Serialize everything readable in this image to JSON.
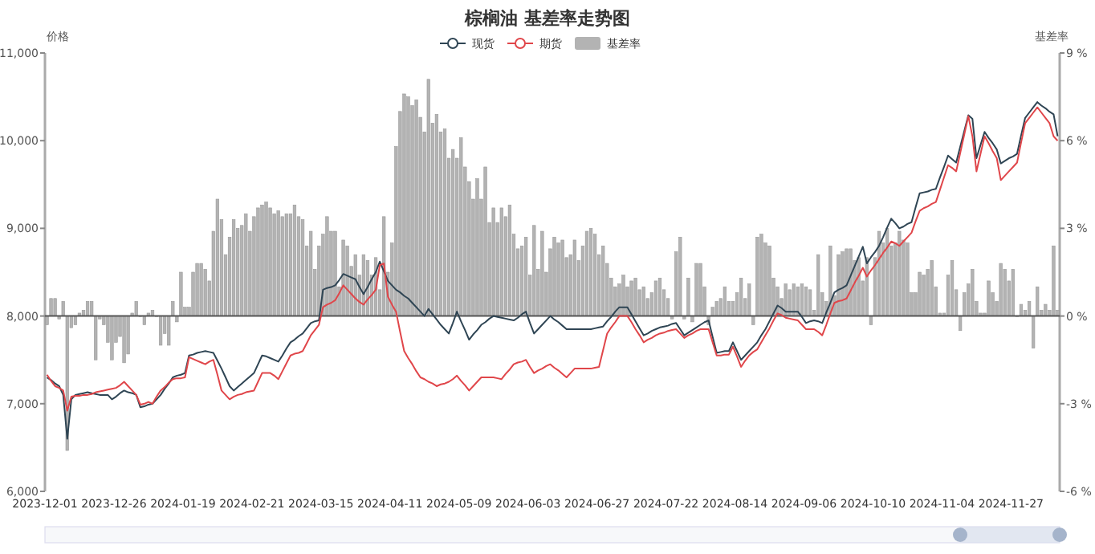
{
  "chart_data": {
    "type": "line",
    "title": "棕榈油 基差率走势图",
    "ylabel": "价格",
    "y2label": "基差率",
    "legend": "top",
    "categories": [
      "2023-12-01",
      null,
      null,
      null,
      null,
      null,
      null,
      null,
      null,
      null,
      null,
      null,
      null,
      null,
      null,
      null,
      null,
      "2023-12-26",
      null,
      null,
      null,
      null,
      null,
      null,
      null,
      null,
      null,
      null,
      null,
      null,
      null,
      null,
      null,
      null,
      "2024-01-19",
      null,
      null,
      null,
      null,
      null,
      null,
      null,
      null,
      null,
      null,
      null,
      null,
      null,
      null,
      null,
      null,
      "2024-02-21",
      null,
      null,
      null,
      null,
      null,
      null,
      null,
      null,
      null,
      null,
      null,
      null,
      null,
      null,
      null,
      null,
      "2024-03-15",
      null,
      null,
      null,
      null,
      null,
      null,
      null,
      null,
      null,
      null,
      null,
      null,
      null,
      null,
      null,
      null,
      "2024-04-11",
      null,
      null,
      null,
      null,
      null,
      null,
      null,
      null,
      null,
      null,
      null,
      null,
      null,
      null,
      null,
      null,
      "2024-05-09",
      null,
      null,
      null,
      null,
      null,
      null,
      null,
      null,
      null,
      null,
      null,
      null,
      null,
      null,
      null,
      null,
      "2024-06-03",
      null,
      null,
      null,
      null,
      null,
      null,
      null,
      null,
      null,
      null,
      null,
      null,
      null,
      null,
      null,
      null,
      "2024-06-27",
      null,
      null,
      null,
      null,
      null,
      null,
      null,
      null,
      null,
      null,
      null,
      null,
      null,
      null,
      null,
      null,
      "2024-07-22",
      null,
      null,
      null,
      null,
      null,
      null,
      null,
      null,
      null,
      null,
      null,
      null,
      null,
      null,
      null,
      null,
      "2024-08-14",
      null,
      null,
      null,
      null,
      null,
      null,
      null,
      null,
      null,
      null,
      null,
      null,
      null,
      null,
      null,
      null,
      "2024-09-06",
      null,
      null,
      null,
      null,
      null,
      null,
      null,
      null,
      null,
      null,
      null,
      null,
      null,
      null,
      null,
      null,
      "2024-10-10",
      null,
      null,
      null,
      null,
      null,
      null,
      null,
      null,
      null,
      null,
      null,
      null,
      null,
      null,
      null,
      null,
      "2024-11-04",
      null,
      null,
      null,
      null,
      null,
      null,
      null,
      null,
      null,
      null,
      null,
      null,
      null,
      null,
      null,
      null,
      "2024-11-27",
      null,
      null,
      null,
      null,
      null,
      null,
      null,
      null,
      null,
      null,
      null
    ],
    "ylim": [
      6000,
      11000
    ],
    "yticks": [
      {
        "value": 6000,
        "label": "6,000"
      },
      {
        "value": 7000,
        "label": "7,000"
      },
      {
        "value": 8000,
        "label": "8,000"
      },
      {
        "value": 9000,
        "label": "9,000"
      },
      {
        "value": 10000,
        "label": "10,000"
      },
      {
        "value": 11000,
        "label": "11,000"
      }
    ],
    "y2lim": [
      -6,
      9
    ],
    "y2ticks": [
      {
        "value": -6,
        "label": "-6 %"
      },
      {
        "value": -3,
        "label": "-3 %"
      },
      {
        "value": 0,
        "label": "0 %"
      },
      {
        "value": 3,
        "label": "3 %"
      },
      {
        "value": 6,
        "label": "6 %"
      },
      {
        "value": 9,
        "label": "9 %"
      }
    ],
    "series": [
      {
        "name": "现货",
        "color": "#2f4554",
        "values": [
          7300,
          7270,
          7230,
          7200,
          7100,
          6600,
          7050,
          7100,
          7110,
          7120,
          7130,
          7120,
          7110,
          7100,
          7100,
          7100,
          7050,
          7080,
          7120,
          7150,
          7130,
          7120,
          7100,
          6960,
          6970,
          6990,
          7000,
          7050,
          7100,
          7170,
          7230,
          7300,
          7320,
          7330,
          7350,
          7550,
          7560,
          7580,
          7590,
          7600,
          7590,
          7580,
          7490,
          7400,
          7300,
          7200,
          7150,
          7190,
          7230,
          7270,
          7310,
          7350,
          7450,
          7550,
          7540,
          7520,
          7500,
          7480,
          7550,
          7630,
          7700,
          7730,
          7770,
          7800,
          7860,
          7920,
          7940,
          7950,
          8300,
          8320,
          8330,
          8350,
          8410,
          8480,
          8460,
          8440,
          8420,
          8330,
          8250,
          8330,
          8420,
          8500,
          8620,
          8510,
          8400,
          8350,
          8300,
          8270,
          8230,
          8200,
          8150,
          8100,
          8050,
          8000,
          8080,
          8020,
          7960,
          7900,
          7850,
          7800,
          7920,
          8050,
          7940,
          7840,
          7730,
          7790,
          7840,
          7900,
          7930,
          7970,
          8000,
          7990,
          7980,
          7970,
          7960,
          7950,
          7980,
          8020,
          8050,
          7920,
          7800,
          7850,
          7900,
          7950,
          8000,
          7960,
          7930,
          7890,
          7850,
          7850,
          7850,
          7850,
          7850,
          7850,
          7850,
          7860,
          7870,
          7880,
          7940,
          7990,
          8050,
          8100,
          8100,
          8100,
          8020,
          7940,
          7860,
          7780,
          7800,
          7830,
          7850,
          7870,
          7880,
          7890,
          7910,
          7920,
          7850,
          7780,
          7810,
          7840,
          7870,
          7900,
          7930,
          7950,
          7760,
          7580,
          7590,
          7600,
          7600,
          7700,
          7600,
          7500,
          7550,
          7600,
          7650,
          7700,
          7780,
          7850,
          7940,
          8030,
          8120,
          8090,
          8050,
          8050,
          8050,
          8050,
          7990,
          7920,
          7940,
          7950,
          7940,
          7920,
          8040,
          8150,
          8270,
          8300,
          8320,
          8350,
          8460,
          8570,
          8680,
          8790,
          8600,
          8670,
          8730,
          8800,
          8900,
          9010,
          9110,
          9060,
          9000,
          9020,
          9050,
          9070,
          9240,
          9400,
          9410,
          9420,
          9440,
          9450,
          9580,
          9700,
          9830,
          9790,
          9750,
          9930,
          10110,
          10290,
          10250,
          9800,
          9950,
          10100,
          10030,
          9970,
          9900,
          9740,
          9770,
          9800,
          9820,
          9850,
          10060,
          10260,
          10320,
          10380,
          10440,
          10400,
          10370,
          10330,
          10300,
          10050
        ]
      },
      {
        "name": "期货",
        "color": "#e0464a",
        "values": [
          7330,
          7260,
          7200,
          7180,
          7150,
          6920,
          7080,
          7090,
          7090,
          7100,
          7100,
          7110,
          7130,
          7140,
          7150,
          7160,
          7170,
          7180,
          7210,
          7250,
          7200,
          7150,
          7100,
          6990,
          7000,
          7020,
          7000,
          7080,
          7150,
          7190,
          7240,
          7280,
          7290,
          7290,
          7300,
          7530,
          7510,
          7490,
          7470,
          7450,
          7480,
          7500,
          7330,
          7150,
          7100,
          7050,
          7080,
          7100,
          7110,
          7130,
          7140,
          7150,
          7250,
          7350,
          7350,
          7350,
          7320,
          7280,
          7370,
          7460,
          7550,
          7570,
          7580,
          7600,
          7690,
          7780,
          7840,
          7900,
          8100,
          8130,
          8150,
          8180,
          8260,
          8350,
          8300,
          8250,
          8200,
          8160,
          8130,
          8190,
          8240,
          8300,
          8580,
          8600,
          8220,
          8130,
          8050,
          7820,
          7600,
          7520,
          7450,
          7370,
          7300,
          7280,
          7250,
          7230,
          7200,
          7220,
          7230,
          7250,
          7280,
          7320,
          7260,
          7210,
          7150,
          7200,
          7250,
          7300,
          7300,
          7300,
          7300,
          7290,
          7280,
          7340,
          7390,
          7450,
          7470,
          7480,
          7500,
          7420,
          7350,
          7380,
          7400,
          7430,
          7450,
          7410,
          7380,
          7340,
          7300,
          7350,
          7400,
          7400,
          7400,
          7400,
          7400,
          7410,
          7420,
          7610,
          7800,
          7870,
          7930,
          8000,
          8000,
          8000,
          7930,
          7850,
          7780,
          7700,
          7730,
          7750,
          7780,
          7800,
          7810,
          7830,
          7840,
          7850,
          7800,
          7750,
          7780,
          7800,
          7830,
          7850,
          7850,
          7850,
          7700,
          7550,
          7550,
          7560,
          7560,
          7650,
          7540,
          7420,
          7490,
          7550,
          7590,
          7620,
          7700,
          7780,
          7860,
          7950,
          8030,
          8010,
          7980,
          7970,
          7960,
          7950,
          7900,
          7850,
          7850,
          7850,
          7820,
          7780,
          7900,
          8030,
          8150,
          8170,
          8180,
          8200,
          8290,
          8380,
          8460,
          8550,
          8450,
          8520,
          8580,
          8650,
          8720,
          8780,
          8850,
          8830,
          8800,
          8850,
          8900,
          8950,
          9080,
          9200,
          9230,
          9250,
          9280,
          9300,
          9440,
          9580,
          9720,
          9690,
          9650,
          9860,
          10070,
          10280,
          10050,
          9650,
          9850,
          10050,
          9970,
          9880,
          9800,
          9550,
          9600,
          9650,
          9700,
          9750,
          9980,
          10200,
          10260,
          10320,
          10380,
          10320,
          10260,
          10200,
          10050,
          10000
        ]
      },
      {
        "name": "基差率",
        "type": "bar",
        "axis": "y2",
        "color": "#b3b3b3",
        "values": [
          -0.3,
          0.6,
          0.6,
          -0.1,
          0.5,
          -4.6,
          -0.4,
          -0.3,
          0.1,
          0.2,
          0.5,
          0.5,
          -1.5,
          -0.1,
          -0.3,
          -0.9,
          -1.5,
          -0.9,
          -0.7,
          -1.6,
          -1.3,
          0.1,
          0.5,
          0.0,
          -0.3,
          0.1,
          0.2,
          0.0,
          -1.0,
          -0.6,
          -1.0,
          0.5,
          -0.2,
          1.5,
          0.3,
          0.3,
          1.5,
          1.8,
          1.8,
          1.6,
          1.2,
          2.9,
          4.0,
          3.3,
          2.1,
          2.7,
          3.3,
          3.0,
          3.1,
          3.5,
          2.9,
          3.4,
          3.7,
          3.8,
          3.9,
          3.7,
          3.5,
          3.6,
          3.4,
          3.5,
          3.5,
          3.8,
          3.4,
          3.3,
          2.4,
          2.9,
          1.6,
          2.4,
          2.8,
          3.4,
          2.9,
          2.9,
          1.0,
          2.6,
          2.4,
          1.7,
          2.1,
          1.4,
          2.1,
          1.9,
          1.4,
          2.0,
          0.9,
          3.4,
          1.5,
          2.5,
          5.8,
          7.0,
          7.6,
          7.5,
          7.2,
          7.4,
          6.8,
          6.3,
          8.1,
          6.6,
          6.9,
          6.3,
          6.4,
          5.4,
          5.7,
          5.4,
          6.1,
          5.1,
          4.6,
          4.0,
          4.7,
          4.0,
          5.1,
          3.2,
          3.7,
          3.2,
          3.7,
          3.4,
          3.8,
          2.8,
          2.3,
          2.4,
          2.7,
          1.4,
          3.1,
          1.6,
          2.9,
          1.5,
          2.3,
          2.7,
          2.5,
          2.6,
          2.0,
          2.1,
          2.6,
          1.9,
          2.4,
          2.9,
          3.0,
          2.8,
          2.1,
          2.4,
          1.8,
          1.3,
          1.0,
          1.1,
          1.4,
          1.0,
          1.2,
          1.3,
          0.9,
          1.0,
          0.6,
          0.8,
          1.2,
          1.3,
          0.9,
          0.6,
          -0.1,
          2.2,
          2.7,
          -0.1,
          1.3,
          -0.2,
          1.8,
          1.8,
          1.0,
          -0.3,
          0.3,
          0.5,
          0.6,
          1.0,
          0.5,
          0.5,
          0.8,
          1.3,
          0.6,
          1.1,
          -0.3,
          2.7,
          2.8,
          2.5,
          2.4,
          1.3,
          1.0,
          0.6,
          1.1,
          0.9,
          1.1,
          1.0,
          1.1,
          1.0,
          0.9,
          0.2,
          2.1,
          0.8,
          0.5,
          2.4,
          0.7,
          2.1,
          2.2,
          2.3,
          2.3,
          1.9,
          2.0,
          1.2,
          2.0,
          -0.3,
          2.0,
          2.9,
          2.5,
          3.0,
          2.4,
          2.5,
          2.9,
          2.6,
          2.5,
          0.8,
          0.8,
          1.5,
          1.4,
          1.6,
          1.9,
          1.0,
          0.1,
          0.1,
          1.4,
          1.9,
          0.9,
          -0.5,
          0.8,
          1.1,
          1.6,
          0.5,
          0.1,
          0.1,
          1.2,
          0.8,
          0.5,
          1.8,
          1.6,
          1.2,
          1.6,
          0.0,
          0.4,
          0.2,
          0.5,
          -1.1,
          1.0,
          0.2,
          0.4,
          0.2,
          2.4,
          0.2
        ]
      }
    ]
  }
}
